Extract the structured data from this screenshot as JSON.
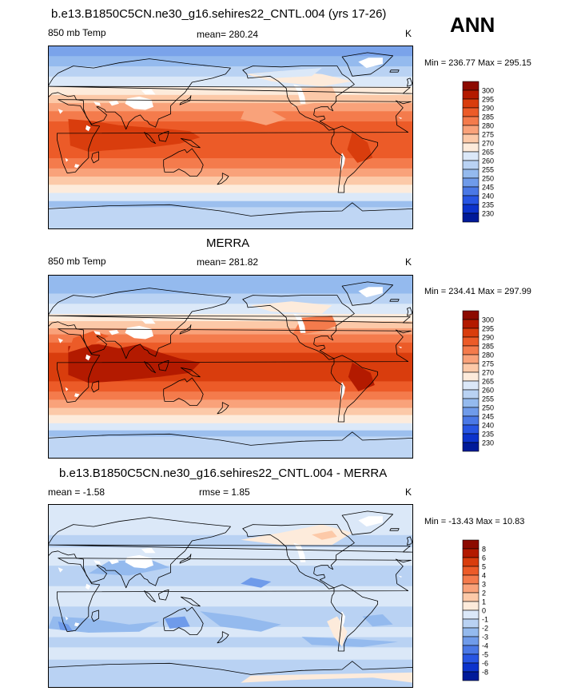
{
  "season": "ANN",
  "panels": [
    {
      "title": "b.e13.B1850C5CN.ne30_g16.sehires22_CNTL.004 (yrs 17-26)",
      "left_label": "850 mb Temp",
      "center_label": "mean= 280.24",
      "right_label": "K",
      "minmax": "Min = 236.77 Max = 295.15"
    },
    {
      "title": "MERRA",
      "left_label": "850 mb Temp",
      "center_label": "mean= 281.82",
      "right_label": "K",
      "minmax": "Min = 234.41 Max = 297.99"
    },
    {
      "title": "b.e13.B1850C5CN.ne30_g16.sehires22_CNTL.004 - MERRA",
      "left_label": "mean =  -1.58",
      "center_label": "rmse =   1.85",
      "right_label": "K",
      "minmax": "Min = -13.43 Max =  10.83"
    }
  ],
  "chart_data": [
    {
      "type": "heatmap",
      "title": "b.e13.B1850C5CN.ne30_g16.sehires22_CNTL.004 (yrs 17-26)",
      "variable": "850 mb Temp",
      "units": "K",
      "mean": 280.24,
      "min": 236.77,
      "max": 295.15,
      "colorbar_levels": [
        300,
        295,
        290,
        285,
        280,
        275,
        270,
        265,
        260,
        255,
        250,
        245,
        240,
        235,
        230
      ],
      "colorbar_colors": [
        "#8c0a00",
        "#b31a00",
        "#d93d0d",
        "#ec5b28",
        "#f47b4c",
        "#f9a27a",
        "#fcc9a8",
        "#fdebdb",
        "#dbe8f8",
        "#b9d2f3",
        "#94baee",
        "#6f9bea",
        "#4a78e6",
        "#2755e3",
        "#0c33cc",
        "#001a99"
      ]
    },
    {
      "type": "heatmap",
      "title": "MERRA",
      "variable": "850 mb Temp",
      "units": "K",
      "mean": 281.82,
      "min": 234.41,
      "max": 297.99,
      "colorbar_levels": [
        300,
        295,
        290,
        285,
        280,
        275,
        270,
        265,
        260,
        255,
        250,
        245,
        240,
        235,
        230
      ],
      "colorbar_colors": [
        "#8c0a00",
        "#b31a00",
        "#d93d0d",
        "#ec5b28",
        "#f47b4c",
        "#f9a27a",
        "#fcc9a8",
        "#fdebdb",
        "#dbe8f8",
        "#b9d2f3",
        "#94baee",
        "#6f9bea",
        "#4a78e6",
        "#2755e3",
        "#0c33cc",
        "#001a99"
      ]
    },
    {
      "type": "heatmap",
      "title": "b.e13.B1850C5CN.ne30_g16.sehires22_CNTL.004 - MERRA",
      "units": "K",
      "mean": -1.58,
      "rmse": 1.85,
      "min": -13.43,
      "max": 10.83,
      "colorbar_levels": [
        8,
        6,
        5,
        4,
        3,
        2,
        1,
        0,
        -1,
        -2,
        -3,
        -4,
        -5,
        -6,
        -8
      ],
      "colorbar_colors": [
        "#8c0a00",
        "#b31a00",
        "#d93d0d",
        "#ec5b28",
        "#f47b4c",
        "#f9a27a",
        "#fcc9a8",
        "#fdebdb",
        "#dbe8f8",
        "#b9d2f3",
        "#94baee",
        "#6f9bea",
        "#4a78e6",
        "#2755e3",
        "#0c33cc",
        "#001a99"
      ]
    }
  ]
}
